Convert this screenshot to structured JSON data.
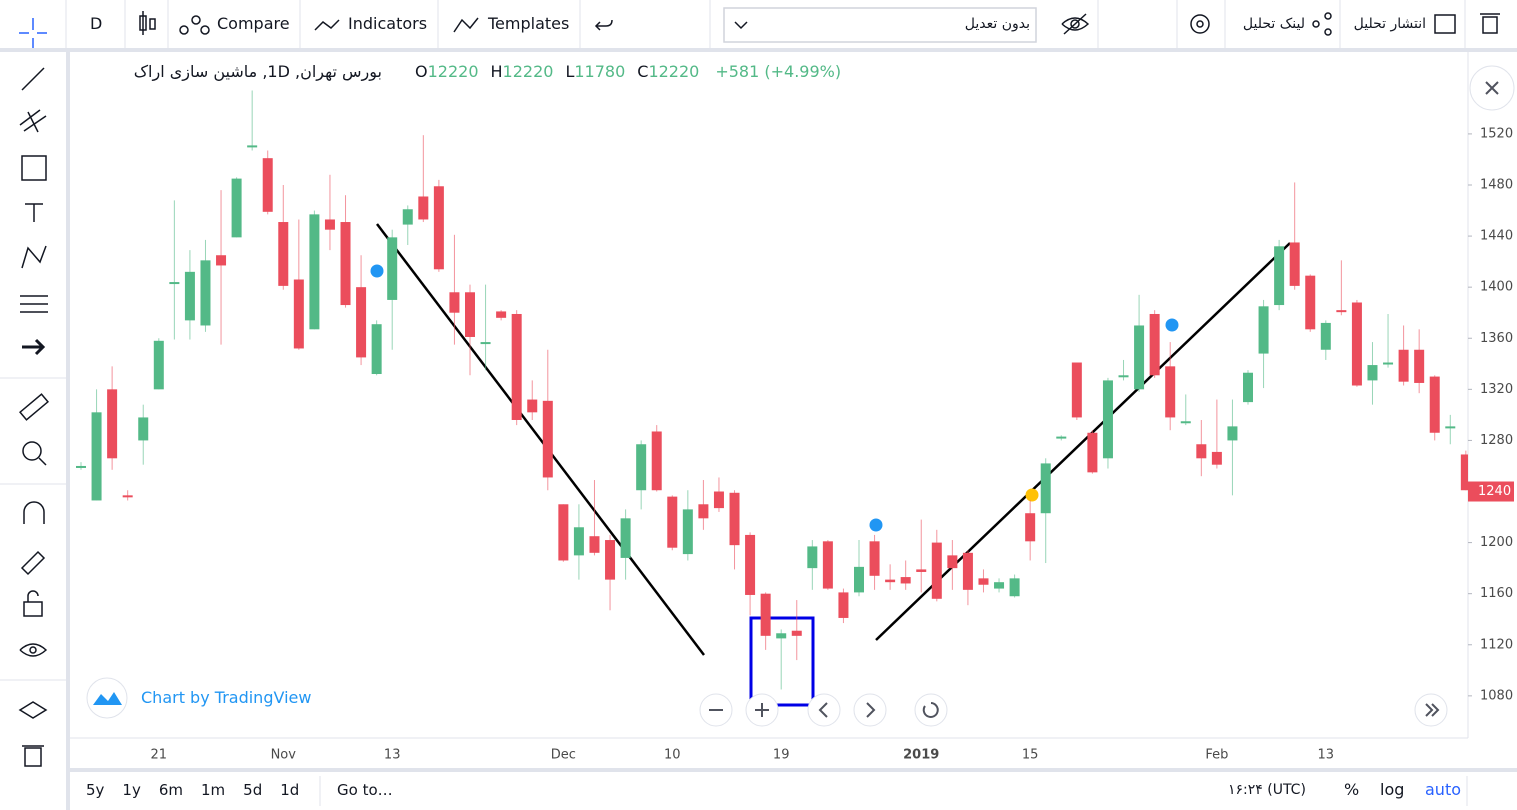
{
  "toolbar": {
    "interval": "D",
    "compare": "Compare",
    "indicators": "Indicators",
    "templates": "Templates",
    "adjustment": "بدون تعدیل",
    "link": "لینک تحلیل",
    "publish": "انتشار تحلیل"
  },
  "legend": {
    "title": "بورس تهران, 1D, ماشین سازی اراک",
    "o_label": "O",
    "open": 12220,
    "h_label": "H",
    "high": 12220,
    "l_label": "L",
    "low": 11780,
    "c_label": "C",
    "close": 12220,
    "change": "+581 (+4.99%)"
  },
  "watermark": "Chart by TradingView",
  "chart_data": {
    "type": "candlestick",
    "up_color": "#53b987",
    "down_color": "#eb4d5c",
    "categories": [
      null,
      null,
      null,
      null,
      null,
      "21",
      null,
      null,
      null,
      null,
      null,
      null,
      null,
      "Nov",
      null,
      null,
      null,
      null,
      null,
      null,
      "13",
      null,
      null,
      null,
      null,
      null,
      null,
      null,
      null,
      null,
      null,
      "Dec",
      null,
      null,
      null,
      null,
      null,
      null,
      "10",
      null,
      null,
      null,
      null,
      null,
      null,
      "19",
      null,
      null,
      null,
      null,
      null,
      null,
      null,
      null,
      "2019",
      null,
      null,
      null,
      null,
      null,
      null,
      "15",
      null,
      null,
      null,
      null,
      null,
      null,
      null,
      null,
      null,
      null,
      null,
      "Feb",
      null,
      null,
      null,
      null,
      null,
      null,
      "13",
      null,
      null,
      null,
      null,
      null,
      null,
      null,
      null,
      null
    ],
    "open": [
      1260,
      1233,
      1320,
      1237,
      1280,
      1320,
      1403,
      1374,
      1370,
      1425,
      1439,
      1510,
      1501,
      1451,
      1406,
      1367,
      1453,
      1451,
      1400,
      1332,
      1390,
      1449,
      1471,
      1479,
      1396,
      1396,
      1356,
      1381,
      1379,
      1312,
      1311,
      1230,
      1190,
      1205,
      1202,
      1188,
      1241,
      1287,
      1236,
      1191,
      1230,
      1240,
      1239,
      1206,
      1160,
      1125,
      1131,
      1180,
      1201,
      1161,
      1161,
      1201,
      1171,
      1173,
      1179,
      1200,
      1190,
      1192,
      1172,
      1164,
      1158,
      1223,
      1223,
      1282,
      1341,
      1286,
      1266,
      1330,
      1320,
      1379,
      1338,
      1294,
      1277,
      1271,
      1280,
      1310,
      1348,
      1386,
      1435,
      1409,
      1351,
      1382,
      1388,
      1327,
      1340,
      1351,
      1351,
      1330,
      1290,
      1269
    ],
    "high": [
      1263,
      1320,
      1338,
      1241,
      1308,
      1360,
      1468,
      1429,
      1437,
      1476,
      1486,
      1554,
      1507,
      1480,
      1453,
      1460,
      1488,
      1472,
      1425,
      1374,
      1445,
      1464,
      1519,
      1484,
      1441,
      1402,
      1402,
      1382,
      1382,
      1327,
      1351,
      1230,
      1230,
      1249,
      1206,
      1226,
      1280,
      1292,
      1237,
      1241,
      1249,
      1251,
      1241,
      1208,
      1161,
      1132,
      1155,
      1202,
      1202,
      1164,
      1202,
      1206,
      1183,
      1186,
      1218,
      1210,
      1202,
      1194,
      1179,
      1172,
      1175,
      1233,
      1266,
      1284,
      1341,
      1288,
      1329,
      1343,
      1394,
      1382,
      1357,
      1316,
      1296,
      1312,
      1312,
      1335,
      1390,
      1437,
      1482,
      1410,
      1374,
      1421,
      1390,
      1357,
      1379,
      1370,
      1367,
      1331,
      1300,
      1272
    ],
    "low": [
      1257,
      1233,
      1257,
      1233,
      1261,
      1320,
      1359,
      1359,
      1365,
      1355,
      1439,
      1507,
      1457,
      1398,
      1351,
      1367,
      1429,
      1384,
      1339,
      1331,
      1351,
      1433,
      1451,
      1412,
      1355,
      1331,
      1335,
      1374,
      1292,
      1296,
      1241,
      1185,
      1171,
      1190,
      1147,
      1171,
      1226,
      1240,
      1194,
      1186,
      1210,
      1224,
      1179,
      1143,
      1116,
      1085,
      1108,
      1163,
      1163,
      1137,
      1158,
      1163,
      1163,
      1163,
      1161,
      1154,
      1163,
      1151,
      1161,
      1161,
      1157,
      1186,
      1184,
      1280,
      1296,
      1254,
      1258,
      1327,
      1318,
      1329,
      1288,
      1292,
      1252,
      1258,
      1237,
      1308,
      1321,
      1382,
      1398,
      1365,
      1343,
      1378,
      1322,
      1308,
      1337,
      1323,
      1317,
      1280,
      1277,
      1241
    ],
    "close": [
      1260,
      1302,
      1266,
      1236,
      1298,
      1358,
      1404,
      1412,
      1421,
      1417,
      1485,
      1511,
      1459,
      1401,
      1352,
      1457,
      1445,
      1386,
      1345,
      1371,
      1439,
      1461,
      1453,
      1414,
      1380,
      1361,
      1357,
      1376,
      1296,
      1302,
      1251,
      1186,
      1212,
      1192,
      1171,
      1219,
      1277,
      1241,
      1196,
      1226,
      1219,
      1227,
      1198,
      1159,
      1127,
      1129,
      1127,
      1197,
      1164,
      1141,
      1181,
      1174,
      1169,
      1168,
      1177,
      1156,
      1180,
      1163,
      1167,
      1169,
      1172,
      1201,
      1262,
      1283,
      1298,
      1255,
      1327,
      1331,
      1370,
      1331,
      1298,
      1295,
      1266,
      1261,
      1291,
      1333,
      1385,
      1432,
      1401,
      1367,
      1372,
      1381,
      1323,
      1339,
      1341,
      1326,
      1325,
      1286,
      1291,
      1241
    ],
    "ylim": [
      1047,
      1581
    ],
    "yticks": [
      1080,
      1120,
      1160,
      1200,
      1240,
      1280,
      1320,
      1360,
      1400,
      1440,
      1480,
      1520
    ],
    "grid": false,
    "last_price": 1240
  },
  "bottom_bar": {
    "ranges": [
      "5y",
      "1y",
      "6m",
      "1m",
      "5d",
      "1d"
    ],
    "goto": "Go to…",
    "time": "۱۶:۲۴ (UTC)",
    "percent": "%",
    "log": "log",
    "auto": "auto"
  }
}
